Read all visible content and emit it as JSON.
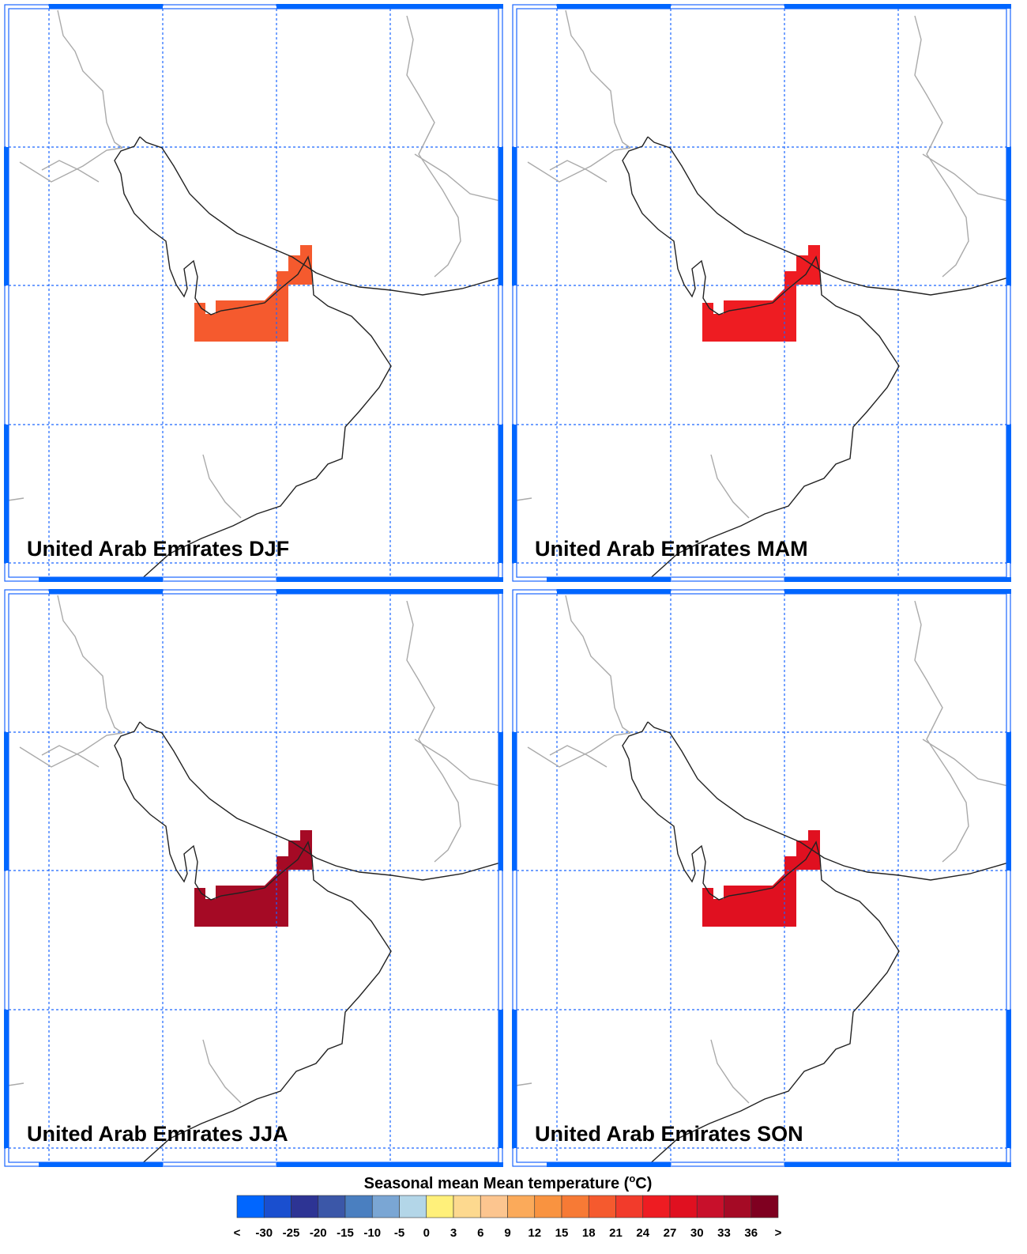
{
  "panels": [
    {
      "title": "United Arab Emirates DJF",
      "value": 19
    },
    {
      "title": "United Arab Emirates MAM",
      "value": 25
    },
    {
      "title": "United Arab Emirates JJA",
      "value": 35
    },
    {
      "title": "United Arab Emirates SON",
      "value": 29
    }
  ],
  "colorbar": {
    "title_parts": [
      "Seasonal mean Mean temperature (",
      "o",
      "C)"
    ],
    "bounds": [
      "<",
      -30,
      -25,
      -20,
      -15,
      -10,
      -5,
      0,
      3,
      6,
      9,
      12,
      15,
      18,
      21,
      24,
      27,
      30,
      33,
      36,
      ">"
    ],
    "colors": [
      "#0066ff",
      "#1a4fcf",
      "#2d3494",
      "#3b57a8",
      "#4a7fc0",
      "#7aa6d4",
      "#b3d6e8",
      "#fff07a",
      "#fdd98f",
      "#fcc58f",
      "#fbaa5a",
      "#f99340",
      "#f77a35",
      "#f55a2e",
      "#f23b2b",
      "#ee1c22",
      "#e01020",
      "#c8102b",
      "#a50a25",
      "#7f0020"
    ]
  }
}
